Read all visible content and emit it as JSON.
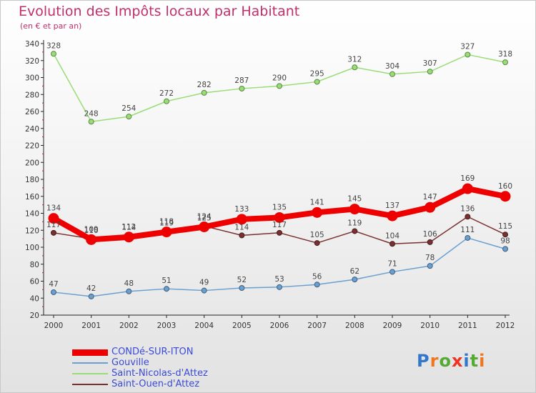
{
  "chart_data": {
    "type": "line",
    "title": "Evolution des Impôts locaux par Habitant",
    "subtitle": "(en € et par an)",
    "x": [
      "2000",
      "2001",
      "2002",
      "2003",
      "2004",
      "2005",
      "2006",
      "2007",
      "2008",
      "2009",
      "2010",
      "2011",
      "2012"
    ],
    "ylim": [
      20,
      340
    ],
    "yticks": [
      20,
      40,
      60,
      80,
      100,
      120,
      140,
      160,
      180,
      200,
      220,
      240,
      260,
      280,
      300,
      320,
      340
    ],
    "grid": false,
    "legend_position": "bottom-left",
    "series": [
      {
        "name": "CONDé-SUR-ITON",
        "color": "#ee0000",
        "values": [
          134,
          109,
          112,
          118,
          124,
          133,
          135,
          141,
          145,
          137,
          147,
          169,
          160
        ]
      },
      {
        "name": "Gouville",
        "color": "#6a9fd0",
        "values": [
          47,
          42,
          48,
          51,
          49,
          52,
          53,
          56,
          62,
          71,
          78,
          111,
          98
        ]
      },
      {
        "name": "Saint-Nicolas-d'Attez",
        "color": "#99dd77",
        "values": [
          328,
          248,
          254,
          272,
          282,
          287,
          290,
          295,
          312,
          304,
          307,
          327,
          318
        ]
      },
      {
        "name": "Saint-Ouen-d'Attez",
        "color": "#7a3030",
        "values": [
          117,
          110,
          114,
          119,
          125,
          114,
          117,
          105,
          119,
          104,
          106,
          136,
          115
        ]
      }
    ]
  },
  "brand": {
    "letters": [
      "P",
      "r",
      "o",
      "x",
      "i",
      "t",
      "i"
    ],
    "colors": [
      "#3377cc",
      "#ee7722",
      "#55aa33",
      "#ee3322",
      "#3377cc",
      "#55aa33",
      "#ee7722"
    ]
  }
}
